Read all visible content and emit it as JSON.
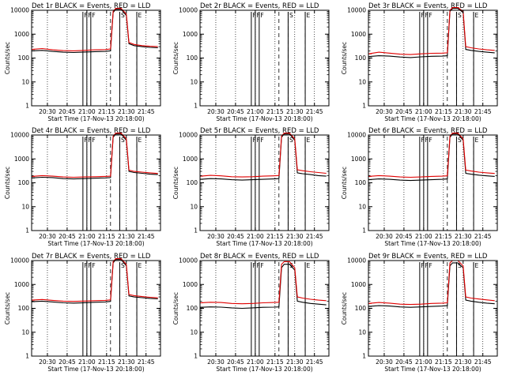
{
  "figure": {
    "colors": {
      "events": "#000000",
      "lld": "#e00000",
      "background": "#ffffff"
    },
    "xlabel": "Start Time (17-Nov-13 20:18:00)",
    "ylabel": "Counts/sec",
    "x_tick_labels": [
      "20:30",
      "20:45",
      "21:00",
      "21:15",
      "21:30",
      "21:45"
    ],
    "y_tick_labels": [
      "1",
      "10",
      "100",
      "1000",
      "10000"
    ]
  },
  "chart_data": [
    {
      "type": "line",
      "title": "Det 1r BLACK = Events, RED = LLD",
      "xlabel": "Start Time (17-Nov-13 20:18:00)",
      "ylabel": "Counts/sec",
      "xlim": [
        "20:18",
        "21:56"
      ],
      "ylim": [
        1,
        10000
      ],
      "yscale": "log",
      "x_ticks": [
        "20:30",
        "20:45",
        "21:00",
        "21:15",
        "21:30",
        "21:45"
      ],
      "y_ticks": [
        "1",
        "10",
        "100",
        "1000",
        "10000"
      ],
      "x": [
        "20:18",
        "20:26",
        "20:34",
        "20:42",
        "20:50",
        "20:58",
        "21:06",
        "21:14",
        "21:18",
        "21:20",
        "21:22",
        "21:26",
        "21:30",
        "21:32",
        "21:36",
        "21:42",
        "21:48",
        "21:54"
      ],
      "series": [
        {
          "name": "Events",
          "color": "#000000",
          "values": [
            200,
            210,
            190,
            175,
            170,
            178,
            185,
            190,
            200,
            8000,
            11000,
            11000,
            6000,
            400,
            330,
            300,
            280,
            270
          ]
        },
        {
          "name": "LLD",
          "color": "#e00000",
          "values": [
            230,
            250,
            220,
            205,
            200,
            210,
            220,
            225,
            240,
            9000,
            12000,
            12000,
            7000,
            450,
            370,
            330,
            310,
            300
          ]
        }
      ],
      "markers": [
        {
          "label": "F",
          "x": "20:57"
        },
        {
          "label": "F",
          "x": "21:00"
        },
        {
          "label": "F",
          "x": "21:03"
        },
        {
          "label": "S",
          "x": "21:25"
        },
        {
          "label": "E",
          "x": "21:38"
        }
      ],
      "dotted_x": [
        "20:30",
        "20:45",
        "21:00",
        "21:15",
        "21:30",
        "21:45"
      ],
      "dashed_x": [
        "21:18",
        "21:25",
        "21:38"
      ]
    },
    {
      "type": "line",
      "title": "Det 2r BLACK = Events, RED = LLD",
      "xlabel": "Start Time (17-Nov-13 20:18:00)",
      "ylabel": "Counts/sec",
      "xlim": [
        "20:18",
        "21:56"
      ],
      "ylim": [
        1,
        10000
      ],
      "yscale": "log",
      "x_ticks": [
        "20:30",
        "20:45",
        "21:00",
        "21:15",
        "21:30",
        "21:45"
      ],
      "y_ticks": [
        "1",
        "10",
        "100",
        "1000",
        "10000"
      ],
      "x": [],
      "series": [],
      "markers": [
        {
          "label": "F",
          "x": "20:57"
        },
        {
          "label": "F",
          "x": "21:00"
        },
        {
          "label": "F",
          "x": "21:03"
        },
        {
          "label": "S",
          "x": "21:25"
        },
        {
          "label": "E",
          "x": "21:38"
        }
      ],
      "dotted_x": [
        "20:30",
        "20:45",
        "21:00",
        "21:15",
        "21:30",
        "21:45"
      ],
      "dashed_x": [
        "21:18",
        "21:25",
        "21:38"
      ]
    },
    {
      "type": "line",
      "title": "Det 3r BLACK = Events, RED = LLD",
      "xlabel": "Start Time (17-Nov-13 20:18:00)",
      "ylabel": "Counts/sec",
      "xlim": [
        "20:18",
        "21:56"
      ],
      "ylim": [
        1,
        10000
      ],
      "yscale": "log",
      "x_ticks": [
        "20:30",
        "20:45",
        "21:00",
        "21:15",
        "21:30",
        "21:45"
      ],
      "y_ticks": [
        "1",
        "10",
        "100",
        "1000",
        "10000"
      ],
      "x": [
        "20:18",
        "20:26",
        "20:34",
        "20:42",
        "20:50",
        "20:58",
        "21:06",
        "21:14",
        "21:18",
        "21:20",
        "21:22",
        "21:26",
        "21:30",
        "21:32",
        "21:36",
        "21:42",
        "21:48",
        "21:54"
      ],
      "series": [
        {
          "name": "Events",
          "color": "#000000",
          "values": [
            115,
            125,
            120,
            110,
            105,
            112,
            118,
            120,
            125,
            9000,
            12000,
            12000,
            8000,
            230,
            210,
            190,
            175,
            165
          ]
        },
        {
          "name": "LLD",
          "color": "#e00000",
          "values": [
            150,
            175,
            160,
            145,
            140,
            150,
            158,
            160,
            165,
            10000,
            13000,
            13000,
            9000,
            300,
            270,
            240,
            220,
            210
          ]
        }
      ],
      "markers": [
        {
          "label": "F",
          "x": "20:57"
        },
        {
          "label": "F",
          "x": "21:00"
        },
        {
          "label": "F",
          "x": "21:03"
        },
        {
          "label": "S",
          "x": "21:25"
        },
        {
          "label": "E",
          "x": "21:38"
        }
      ],
      "dotted_x": [
        "20:30",
        "20:45",
        "21:00",
        "21:15",
        "21:30",
        "21:45"
      ],
      "dashed_x": [
        "21:18",
        "21:25",
        "21:38"
      ]
    },
    {
      "type": "line",
      "title": "Det 4r BLACK = Events, RED = LLD",
      "xlabel": "Start Time (17-Nov-13 20:18:00)",
      "ylabel": "Counts/sec",
      "xlim": [
        "20:18",
        "21:56"
      ],
      "ylim": [
        1,
        10000
      ],
      "yscale": "log",
      "x_ticks": [
        "20:30",
        "20:45",
        "21:00",
        "21:15",
        "21:30",
        "21:45"
      ],
      "y_ticks": [
        "1",
        "10",
        "100",
        "1000",
        "10000"
      ],
      "x": [
        "20:18",
        "20:26",
        "20:34",
        "20:42",
        "20:50",
        "20:58",
        "21:06",
        "21:14",
        "21:18",
        "21:20",
        "21:22",
        "21:26",
        "21:30",
        "21:32",
        "21:36",
        "21:42",
        "21:48",
        "21:54"
      ],
      "series": [
        {
          "name": "Events",
          "color": "#000000",
          "values": [
            160,
            170,
            165,
            150,
            145,
            150,
            155,
            160,
            165,
            8000,
            11000,
            11000,
            6000,
            300,
            270,
            250,
            230,
            220
          ]
        },
        {
          "name": "LLD",
          "color": "#e00000",
          "values": [
            185,
            200,
            190,
            175,
            170,
            175,
            180,
            185,
            190,
            9000,
            12000,
            12000,
            7000,
            340,
            300,
            280,
            260,
            245
          ]
        }
      ],
      "markers": [
        {
          "label": "F",
          "x": "20:57"
        },
        {
          "label": "F",
          "x": "21:00"
        },
        {
          "label": "F",
          "x": "21:03"
        },
        {
          "label": "S",
          "x": "21:25"
        },
        {
          "label": "E",
          "x": "21:38"
        }
      ],
      "dotted_x": [
        "20:30",
        "20:45",
        "21:00",
        "21:15",
        "21:30",
        "21:45"
      ],
      "dashed_x": [
        "21:18",
        "21:25",
        "21:38"
      ]
    },
    {
      "type": "line",
      "title": "Det 5r BLACK = Events, RED = LLD",
      "xlabel": "Start Time (17-Nov-13 20:18:00)",
      "ylabel": "Counts/sec",
      "xlim": [
        "20:18",
        "21:56"
      ],
      "ylim": [
        1,
        10000
      ],
      "yscale": "log",
      "x_ticks": [
        "20:30",
        "20:45",
        "21:00",
        "21:15",
        "21:30",
        "21:45"
      ],
      "y_ticks": [
        "1",
        "10",
        "100",
        "1000",
        "10000"
      ],
      "x": [
        "20:18",
        "20:26",
        "20:34",
        "20:42",
        "20:50",
        "20:58",
        "21:06",
        "21:14",
        "21:18",
        "21:20",
        "21:22",
        "21:26",
        "21:30",
        "21:32",
        "21:36",
        "21:42",
        "21:48",
        "21:54"
      ],
      "series": [
        {
          "name": "Events",
          "color": "#000000",
          "values": [
            140,
            150,
            145,
            135,
            130,
            135,
            140,
            145,
            150,
            8000,
            11000,
            11000,
            6000,
            260,
            240,
            220,
            200,
            190
          ]
        },
        {
          "name": "LLD",
          "color": "#e00000",
          "values": [
            190,
            205,
            195,
            180,
            175,
            180,
            190,
            195,
            200,
            9000,
            12000,
            12000,
            7000,
            350,
            320,
            290,
            270,
            250
          ]
        }
      ],
      "markers": [
        {
          "label": "F",
          "x": "20:57"
        },
        {
          "label": "F",
          "x": "21:00"
        },
        {
          "label": "F",
          "x": "21:03"
        },
        {
          "label": "S",
          "x": "21:25"
        },
        {
          "label": "E",
          "x": "21:38"
        }
      ],
      "dotted_x": [
        "20:30",
        "20:45",
        "21:00",
        "21:15",
        "21:30",
        "21:45"
      ],
      "dashed_x": [
        "21:18",
        "21:25",
        "21:38"
      ]
    },
    {
      "type": "line",
      "title": "Det 6r BLACK = Events, RED = LLD",
      "xlabel": "Start Time (17-Nov-13 20:18:00)",
      "ylabel": "Counts/sec",
      "xlim": [
        "20:18",
        "21:56"
      ],
      "ylim": [
        1,
        10000
      ],
      "yscale": "log",
      "x_ticks": [
        "20:30",
        "20:45",
        "21:00",
        "21:15",
        "21:30",
        "21:45"
      ],
      "y_ticks": [
        "1",
        "10",
        "100",
        "1000",
        "10000"
      ],
      "x": [
        "20:18",
        "20:26",
        "20:34",
        "20:42",
        "20:50",
        "20:58",
        "21:06",
        "21:14",
        "21:18",
        "21:20",
        "21:22",
        "21:26",
        "21:30",
        "21:32",
        "21:36",
        "21:42",
        "21:48",
        "21:54"
      ],
      "series": [
        {
          "name": "Events",
          "color": "#000000",
          "values": [
            135,
            145,
            140,
            130,
            125,
            130,
            135,
            140,
            145,
            8000,
            11000,
            11000,
            6000,
            250,
            230,
            210,
            195,
            185
          ]
        },
        {
          "name": "LLD",
          "color": "#e00000",
          "values": [
            185,
            200,
            190,
            175,
            170,
            175,
            185,
            190,
            195,
            9000,
            12000,
            12000,
            7000,
            340,
            310,
            280,
            260,
            245
          ]
        }
      ],
      "markers": [
        {
          "label": "F",
          "x": "20:57"
        },
        {
          "label": "F",
          "x": "21:00"
        },
        {
          "label": "F",
          "x": "21:03"
        },
        {
          "label": "S",
          "x": "21:25"
        },
        {
          "label": "E",
          "x": "21:38"
        }
      ],
      "dotted_x": [
        "20:30",
        "20:45",
        "21:00",
        "21:15",
        "21:30",
        "21:45"
      ],
      "dashed_x": [
        "21:18",
        "21:25",
        "21:38"
      ]
    },
    {
      "type": "line",
      "title": "Det 7r BLACK = Events, RED = LLD",
      "xlabel": "Start Time (17-Nov-13 20:18:00)",
      "ylabel": "Counts/sec",
      "xlim": [
        "20:18",
        "21:56"
      ],
      "ylim": [
        1,
        10000
      ],
      "yscale": "log",
      "x_ticks": [
        "20:30",
        "20:45",
        "21:00",
        "21:15",
        "21:30",
        "21:45"
      ],
      "y_ticks": [
        "1",
        "10",
        "100",
        "1000",
        "10000"
      ],
      "x": [
        "20:18",
        "20:26",
        "20:34",
        "20:42",
        "20:50",
        "20:58",
        "21:06",
        "21:14",
        "21:18",
        "21:20",
        "21:22",
        "21:26",
        "21:30",
        "21:32",
        "21:36",
        "21:42",
        "21:48",
        "21:54"
      ],
      "series": [
        {
          "name": "Events",
          "color": "#000000",
          "values": [
            190,
            200,
            185,
            170,
            165,
            172,
            180,
            185,
            195,
            8000,
            11000,
            11000,
            6000,
            330,
            300,
            280,
            260,
            250
          ]
        },
        {
          "name": "LLD",
          "color": "#e00000",
          "values": [
            220,
            235,
            215,
            200,
            195,
            202,
            210,
            215,
            225,
            9000,
            12000,
            12000,
            7000,
            380,
            340,
            310,
            290,
            275
          ]
        }
      ],
      "markers": [
        {
          "label": "F",
          "x": "20:57"
        },
        {
          "label": "F",
          "x": "21:00"
        },
        {
          "label": "F",
          "x": "21:03"
        },
        {
          "label": "S",
          "x": "21:25"
        },
        {
          "label": "E",
          "x": "21:38"
        }
      ],
      "dotted_x": [
        "20:30",
        "20:45",
        "21:00",
        "21:15",
        "21:30",
        "21:45"
      ],
      "dashed_x": [
        "21:18",
        "21:25",
        "21:38"
      ]
    },
    {
      "type": "line",
      "title": "Det 8r BLACK = Events, RED = LLD",
      "xlabel": "Start Time (17-Nov-13 20:18:00)",
      "ylabel": "Counts/sec",
      "xlim": [
        "20:18",
        "21:56"
      ],
      "ylim": [
        1,
        10000
      ],
      "yscale": "log",
      "x_ticks": [
        "20:30",
        "20:45",
        "21:00",
        "21:15",
        "21:30",
        "21:45"
      ],
      "y_ticks": [
        "1",
        "10",
        "100",
        "1000",
        "10000"
      ],
      "x": [
        "20:18",
        "20:26",
        "20:34",
        "20:42",
        "20:50",
        "20:58",
        "21:06",
        "21:14",
        "21:18",
        "21:20",
        "21:22",
        "21:26",
        "21:30",
        "21:32",
        "21:36",
        "21:42",
        "21:48",
        "21:54"
      ],
      "series": [
        {
          "name": "Events",
          "color": "#000000",
          "values": [
            110,
            115,
            112,
            105,
            100,
            105,
            110,
            112,
            115,
            5000,
            7000,
            7000,
            4000,
            200,
            180,
            160,
            150,
            140
          ]
        },
        {
          "name": "LLD",
          "color": "#e00000",
          "values": [
            170,
            180,
            175,
            160,
            155,
            160,
            170,
            175,
            180,
            7000,
            9000,
            9000,
            5000,
            300,
            270,
            240,
            220,
            210
          ]
        }
      ],
      "markers": [
        {
          "label": "F",
          "x": "20:57"
        },
        {
          "label": "F",
          "x": "21:00"
        },
        {
          "label": "F",
          "x": "21:03"
        },
        {
          "label": "S",
          "x": "21:25"
        },
        {
          "label": "E",
          "x": "21:38"
        }
      ],
      "dotted_x": [
        "20:30",
        "20:45",
        "21:00",
        "21:15",
        "21:30",
        "21:45"
      ],
      "dashed_x": [
        "21:18",
        "21:25",
        "21:38"
      ]
    },
    {
      "type": "line",
      "title": "Det 9r BLACK = Events, RED = LLD",
      "xlabel": "Start Time (17-Nov-13 20:18:00)",
      "ylabel": "Counts/sec",
      "xlim": [
        "20:18",
        "21:56"
      ],
      "ylim": [
        1,
        10000
      ],
      "yscale": "log",
      "x_ticks": [
        "20:30",
        "20:45",
        "21:00",
        "21:15",
        "21:30",
        "21:45"
      ],
      "y_ticks": [
        "1",
        "10",
        "100",
        "1000",
        "10000"
      ],
      "x": [
        "20:18",
        "20:26",
        "20:34",
        "20:42",
        "20:50",
        "20:58",
        "21:06",
        "21:14",
        "21:18",
        "21:20",
        "21:22",
        "21:26",
        "21:30",
        "21:32",
        "21:36",
        "21:42",
        "21:48",
        "21:54"
      ],
      "series": [
        {
          "name": "Events",
          "color": "#000000",
          "values": [
            120,
            130,
            125,
            115,
            110,
            115,
            120,
            125,
            130,
            6000,
            8000,
            8000,
            5000,
            220,
            200,
            180,
            165,
            155
          ]
        },
        {
          "name": "LLD",
          "color": "#e00000",
          "values": [
            160,
            175,
            165,
            150,
            145,
            150,
            160,
            165,
            170,
            8000,
            10000,
            10000,
            6000,
            300,
            270,
            245,
            225,
            210
          ]
        }
      ],
      "markers": [
        {
          "label": "F",
          "x": "20:57"
        },
        {
          "label": "F",
          "x": "21:00"
        },
        {
          "label": "F",
          "x": "21:03"
        },
        {
          "label": "S",
          "x": "21:25"
        },
        {
          "label": "E",
          "x": "21:38"
        }
      ],
      "dotted_x": [
        "20:30",
        "20:45",
        "21:00",
        "21:15",
        "21:30",
        "21:45"
      ],
      "dashed_x": [
        "21:18",
        "21:25",
        "21:38"
      ]
    }
  ]
}
